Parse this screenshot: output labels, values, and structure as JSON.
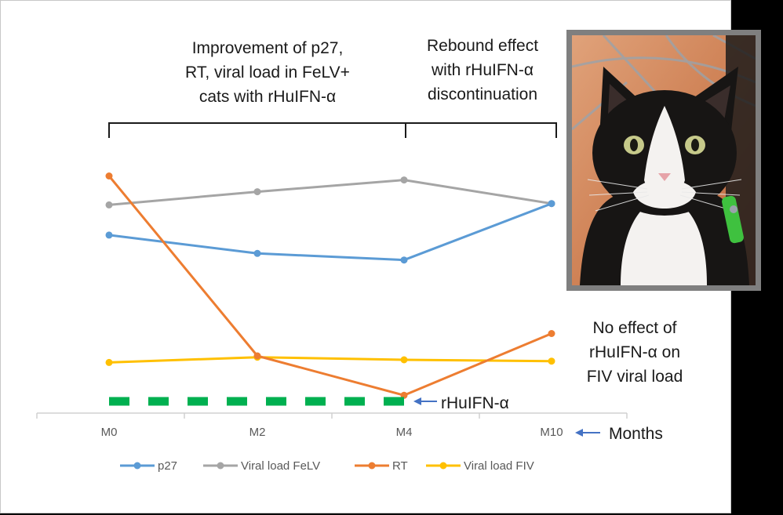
{
  "annotations": {
    "improvement": [
      "Improvement of p27,",
      "RT, viral load in FeLV+",
      "cats with rHuIFN-α"
    ],
    "rebound": [
      "Rebound effect",
      "with rHuIFN-α",
      "discontinuation"
    ],
    "no_effect": [
      "No effect of",
      "rHuIFN-α on",
      "FIV viral load"
    ]
  },
  "months_label": "Months",
  "treatment_label": "rHuIFN-α",
  "colors": {
    "p27": "#5b9bd5",
    "felv": "#a5a5a5",
    "rt": "#ed7d31",
    "fiv": "#ffc000",
    "treatment": "#00b050",
    "arrow": "#4472c4"
  },
  "chart_data": {
    "type": "line",
    "categories": [
      "M0",
      "M2",
      "M4",
      "M10"
    ],
    "series": [
      {
        "name": "p27",
        "values": [
          6.1,
          5.4,
          5.15,
          7.3
        ]
      },
      {
        "name": "Viral load FeLV",
        "values": [
          7.25,
          7.75,
          8.2,
          7.3
        ]
      },
      {
        "name": "RT",
        "values": [
          8.35,
          1.5,
          0.0,
          2.35
        ]
      },
      {
        "name": "Viral load FIV",
        "values": [
          1.25,
          1.45,
          1.35,
          1.3
        ]
      }
    ],
    "treatment_period": [
      "M0",
      "M4"
    ],
    "ylim": [
      -0.5,
      9.5
    ],
    "grid": false,
    "legend": "bottom"
  }
}
